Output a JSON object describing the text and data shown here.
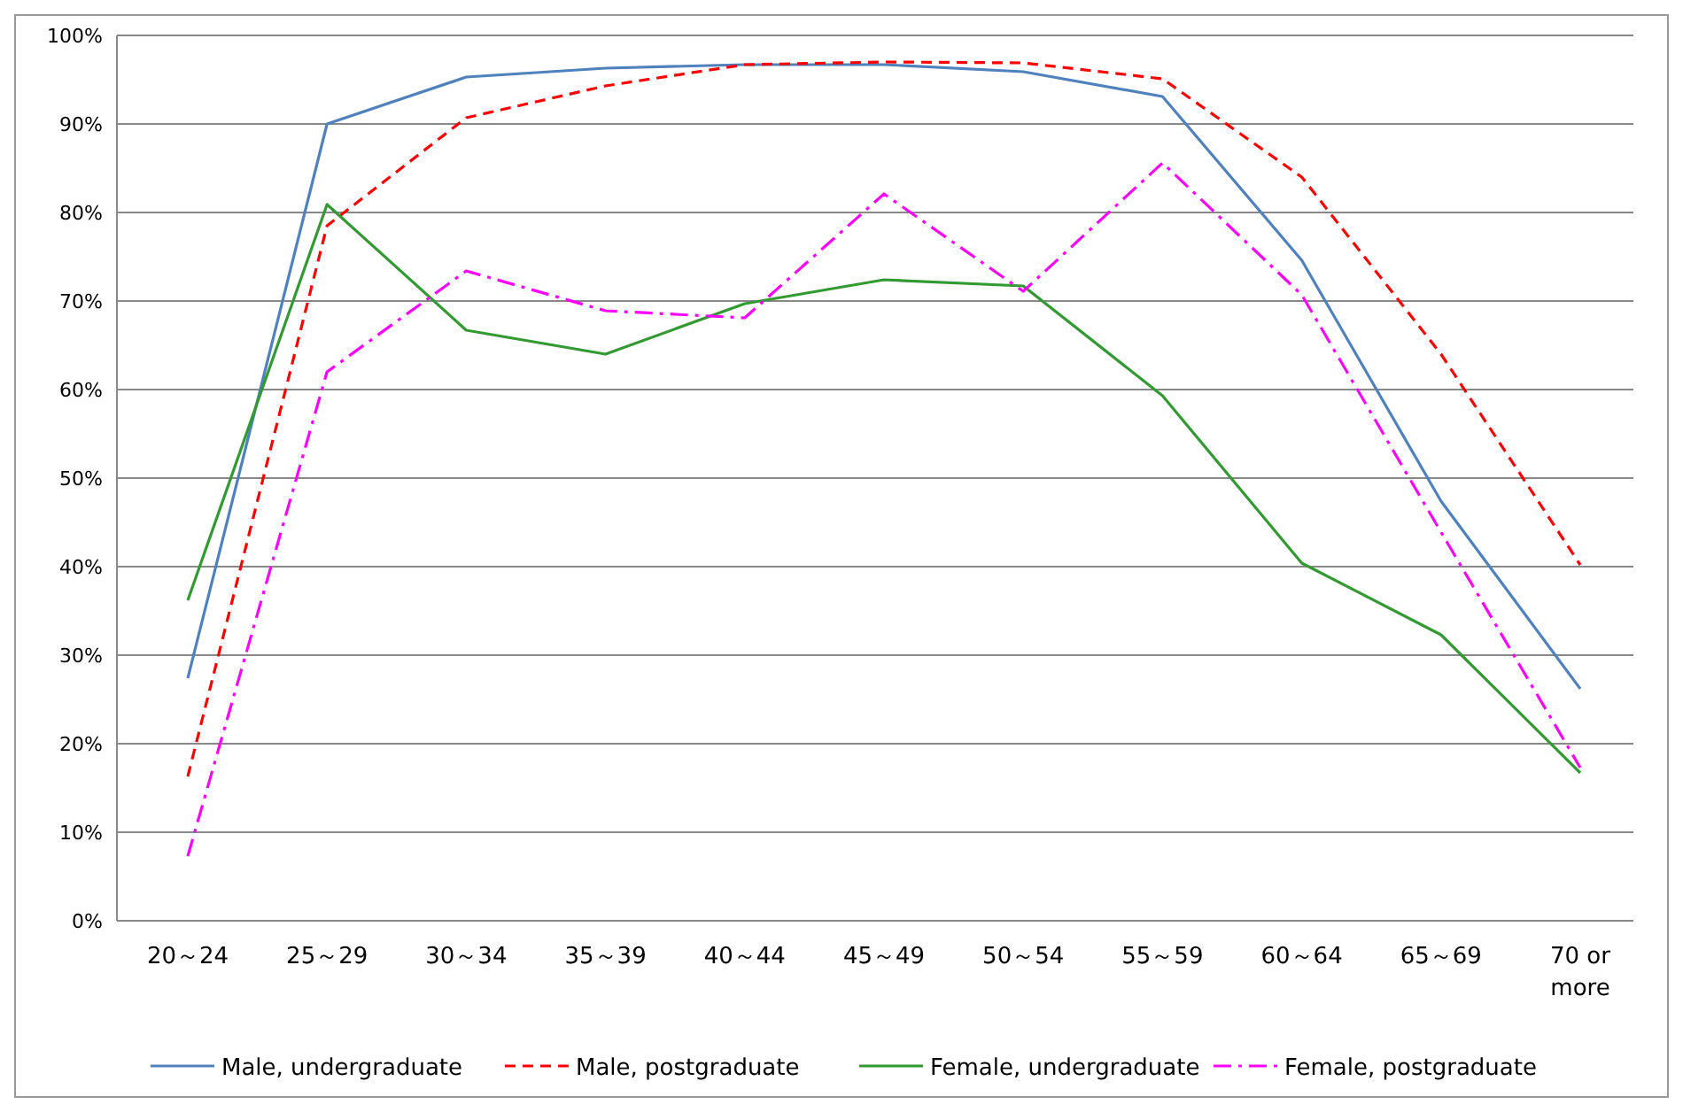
{
  "chart_data": {
    "type": "line",
    "categories": [
      "20～24",
      "25～29",
      "30～34",
      "35～39",
      "40～44",
      "45～49",
      "50～54",
      "55～59",
      "60～64",
      "65～69",
      "70 or more"
    ],
    "ylim": [
      0,
      100
    ],
    "yticks": [
      {
        "value": 0,
        "label": "0%"
      },
      {
        "value": 10,
        "label": "10%"
      },
      {
        "value": 20,
        "label": "20%"
      },
      {
        "value": 30,
        "label": "30%"
      },
      {
        "value": 40,
        "label": "40%"
      },
      {
        "value": 50,
        "label": "50%"
      },
      {
        "value": 60,
        "label": "60%"
      },
      {
        "value": 70,
        "label": "70%"
      },
      {
        "value": 80,
        "label": "80%"
      },
      {
        "value": 90,
        "label": "90%"
      },
      {
        "value": 100,
        "label": "100%"
      }
    ],
    "grid": "y",
    "legend": "bottom",
    "marker": "none",
    "series": [
      {
        "name": "Male, undergraduate",
        "color": "#4f81bd",
        "line_style": "solid",
        "values": [
          27.4,
          90,
          95.3,
          96.3,
          96.7,
          96.7,
          95.9,
          93.1,
          74.6,
          47.4,
          26.2
        ]
      },
      {
        "name": "Male, postgraduate",
        "color": "#ff0000",
        "line_style": "dashed",
        "values": [
          16.3,
          78.5,
          90.7,
          94.3,
          96.7,
          97,
          96.9,
          95.1,
          84,
          64,
          40.2
        ]
      },
      {
        "name": "Female, undergraduate",
        "color": "#339933",
        "line_style": "solid",
        "values": [
          36.2,
          80.9,
          66.7,
          64,
          69.7,
          72.4,
          71.7,
          59.3,
          40.4,
          32.3,
          16.7
        ]
      },
      {
        "name": "Female, postgraduate",
        "color": "#ff00ff",
        "line_style": "dashdot",
        "values": [
          7.3,
          62,
          73.4,
          68.9,
          68.1,
          82.1,
          71.1,
          85.6,
          70.7,
          43.9,
          17.3
        ]
      }
    ]
  }
}
